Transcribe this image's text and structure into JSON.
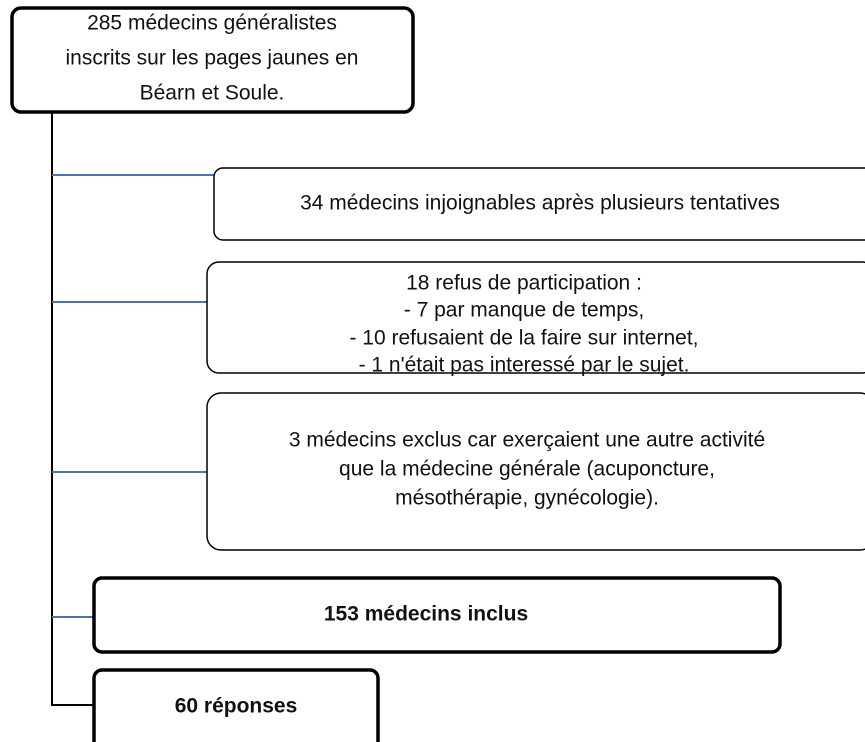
{
  "nodes": [
    {
      "lines": [
        "285 médecins généralistes",
        "inscrits sur les pages jaunes en",
        "Béarn et Soule."
      ]
    },
    {
      "lines": [
        "34 médecins injoignables après plusieurs tentatives"
      ]
    },
    {
      "lines": [
        "18 refus de participation :",
        "- 7 par manque de temps,",
        "- 10 refusaient de la faire sur internet,",
        "- 1 n'était pas interessé par le sujet."
      ]
    },
    {
      "lines": [
        "3 médecins exclus car exerçaient une autre activité",
        "que la médecine générale (acuponcture,",
        "mésothérapie, gynécologie)."
      ]
    },
    {
      "lines": [
        "153 médecins inclus"
      ]
    },
    {
      "lines": [
        "60 réponses"
      ]
    }
  ]
}
